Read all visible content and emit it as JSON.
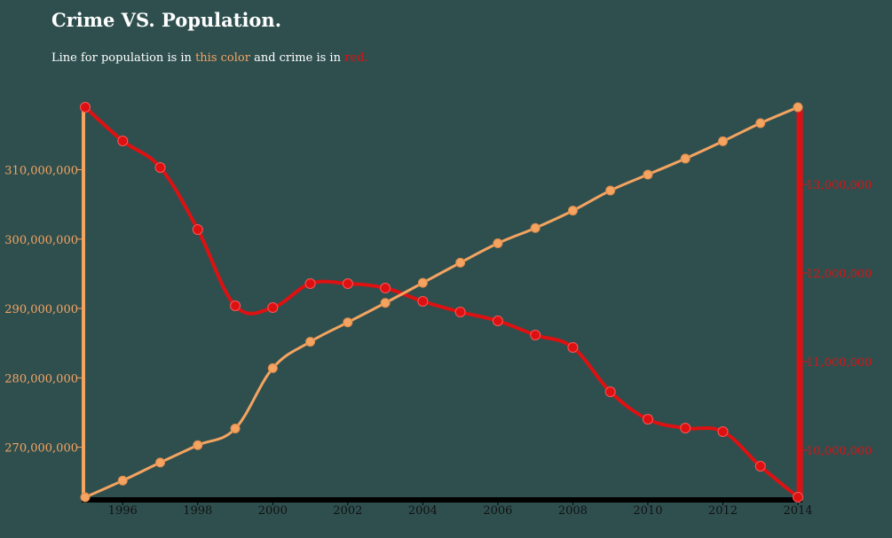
{
  "header": {
    "title": "Crime VS. Population.",
    "subtitle_prefix": "Line for population is in ",
    "subtitle_pop_word": "this color",
    "subtitle_middle": " and crime is in ",
    "subtitle_crime_word": "red."
  },
  "colors": {
    "background": "#2f4f4f",
    "population": "#f4a460",
    "crime": "#dd1111",
    "x_axis": "#000000"
  },
  "chart_data": {
    "type": "line",
    "title": "Crime VS. Population.",
    "x": [
      1995,
      1996,
      1997,
      1998,
      1999,
      2000,
      2001,
      2002,
      2003,
      2004,
      2005,
      2006,
      2007,
      2008,
      2009,
      2010,
      2011,
      2012,
      2013,
      2014
    ],
    "x_ticks": [
      "1996",
      "1998",
      "2000",
      "2002",
      "2004",
      "2006",
      "2008",
      "2010",
      "2012",
      "2014"
    ],
    "xlim": [
      1995,
      2014
    ],
    "series": [
      {
        "axis": "left",
        "values": [
          262800000,
          265200000,
          267800000,
          270300000,
          272700000,
          281400000,
          285200000,
          288000000,
          290800000,
          293700000,
          296600000,
          299400000,
          301600000,
          304100000,
          307000000,
          309300000,
          311600000,
          314100000,
          316700000,
          319000000
        ]
      },
      {
        "axis": "right",
        "values": [
          13870000,
          13490000,
          13190000,
          12490000,
          11630000,
          11610000,
          11880000,
          11880000,
          11830000,
          11680000,
          11560000,
          11460000,
          11300000,
          11160000,
          10660000,
          10350000,
          10250000,
          10210000,
          9820000,
          9470000
        ]
      }
    ],
    "left_axis": {
      "ylim": [
        262800000,
        319000000
      ],
      "ticks": [
        270000000,
        280000000,
        290000000,
        300000000,
        310000000
      ],
      "tick_labels": [
        "270,000,000",
        "280,000,000",
        "290,000,000",
        "300,000,000",
        "310,000,000"
      ]
    },
    "right_axis": {
      "ylim": [
        9470000,
        13870000
      ],
      "ticks": [
        10000000,
        11000000,
        12000000,
        13000000
      ],
      "tick_labels": [
        "10,000,000",
        "11,000,000",
        "12,000,000",
        "13,000,000"
      ]
    },
    "grid": false,
    "legend": "none"
  }
}
